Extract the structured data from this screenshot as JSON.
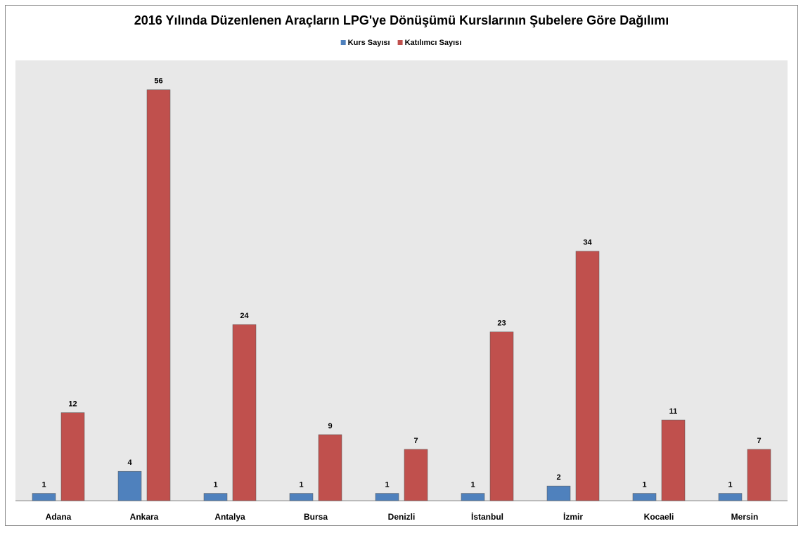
{
  "chart_data": {
    "type": "bar",
    "title": "2016 Yılında Düzenlenen Araçların LPG'ye Dönüşümü Kurslarının Şubelere Göre Dağılımı",
    "categories": [
      "Adana",
      "Ankara",
      "Antalya",
      "Bursa",
      "Denizli",
      "İstanbul",
      "İzmir",
      "Kocaeli",
      "Mersin"
    ],
    "series": [
      {
        "name": "Kurs Sayısı",
        "color": "#4f81bd",
        "values": [
          1,
          4,
          1,
          1,
          1,
          1,
          2,
          1,
          1
        ]
      },
      {
        "name": "Katılımcı Sayısı",
        "color": "#c0504d",
        "values": [
          12,
          56,
          24,
          9,
          7,
          23,
          34,
          11,
          7
        ]
      }
    ],
    "ylim": [
      0,
      60
    ],
    "legend": "top",
    "grid": false
  }
}
